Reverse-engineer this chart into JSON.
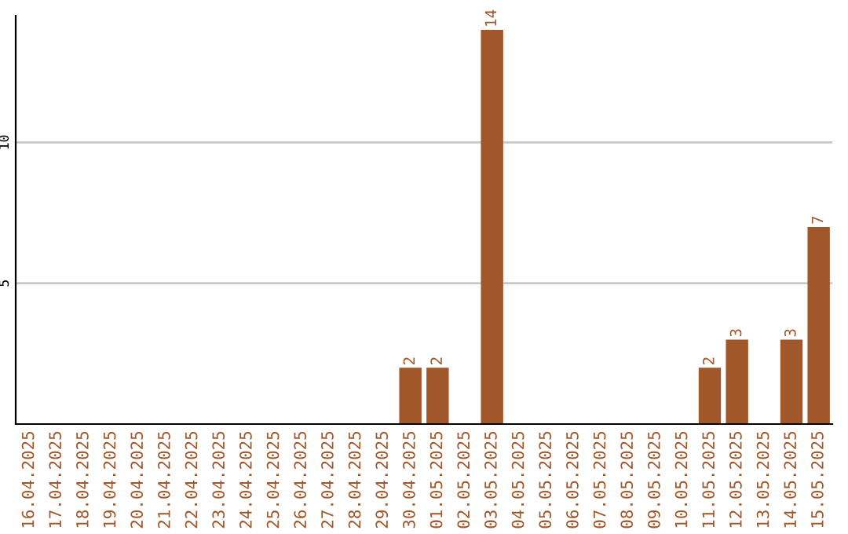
{
  "chart_data": {
    "type": "bar",
    "categories": [
      "16.04.2025",
      "17.04.2025",
      "18.04.2025",
      "19.04.2025",
      "20.04.2025",
      "21.04.2025",
      "22.04.2025",
      "23.04.2025",
      "24.04.2025",
      "25.04.2025",
      "26.04.2025",
      "27.04.2025",
      "28.04.2025",
      "29.04.2025",
      "30.04.2025",
      "01.05.2025",
      "02.05.2025",
      "03.05.2025",
      "04.05.2025",
      "05.05.2025",
      "06.05.2025",
      "07.05.2025",
      "08.05.2025",
      "09.05.2025",
      "10.05.2025",
      "11.05.2025",
      "12.05.2025",
      "13.05.2025",
      "14.05.2025",
      "15.05.2025"
    ],
    "values": [
      0,
      0,
      0,
      0,
      0,
      0,
      0,
      0,
      0,
      0,
      0,
      0,
      0,
      0,
      2,
      2,
      0,
      14,
      0,
      0,
      0,
      0,
      0,
      0,
      0,
      2,
      3,
      0,
      3,
      7
    ],
    "value_labels": [
      null,
      null,
      null,
      null,
      null,
      null,
      null,
      null,
      null,
      null,
      null,
      null,
      null,
      null,
      "2",
      "2",
      null,
      "14",
      null,
      null,
      null,
      null,
      null,
      null,
      null,
      "2",
      "3",
      null,
      "3",
      "7"
    ],
    "color": "#a0572a",
    "ylim": [
      0,
      14.5
    ],
    "yticks": [
      5,
      10
    ],
    "grid": "y"
  }
}
